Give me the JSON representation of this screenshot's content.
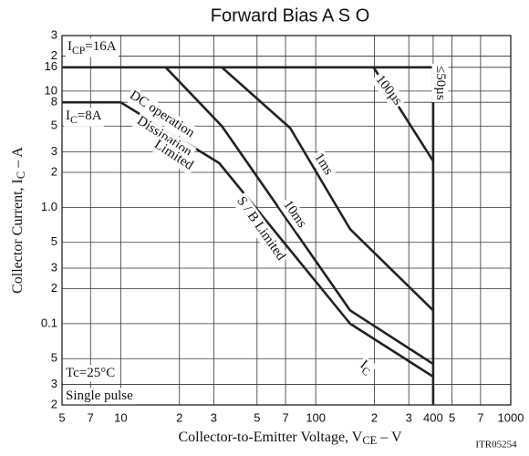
{
  "chart_data": {
    "type": "line",
    "title": "Forward Bias A S O",
    "x_label": {
      "text": "Collector-to-Emitter Voltage, V",
      "sub": "CE",
      "rest": "  –  V"
    },
    "y_label": {
      "text": "Collector Current, I",
      "sub": "C",
      "rest": "  –  A"
    },
    "code": "ITR05254",
    "log_x": true,
    "log_y": true,
    "grid": true,
    "xlim": [
      5,
      1000
    ],
    "ylim": [
      0.02,
      30
    ],
    "xticks": [
      5,
      7,
      10,
      {
        "value": 20,
        "label": "2"
      },
      {
        "value": 30,
        "label": "3"
      },
      {
        "value": 50,
        "label": "5"
      },
      {
        "value": 70,
        "label": "7"
      },
      100,
      {
        "value": 200,
        "label": "2"
      },
      {
        "value": 300,
        "label": "3"
      },
      400,
      {
        "value": 500,
        "label": "5"
      },
      {
        "value": 700,
        "label": "7"
      },
      1000
    ],
    "yticks": [
      {
        "value": 30,
        "label": "3"
      },
      {
        "value": 20,
        "label": "2"
      },
      16,
      10,
      8,
      {
        "value": 5,
        "label": "5"
      },
      {
        "value": 3,
        "label": "3"
      },
      {
        "value": 2,
        "label": "2"
      },
      {
        "value": 1,
        "label": "1.0"
      },
      {
        "value": 0.5,
        "label": "5"
      },
      {
        "value": 0.3,
        "label": "3"
      },
      {
        "value": 0.2,
        "label": "2"
      },
      0.1,
      {
        "value": 0.05,
        "label": "5"
      },
      {
        "value": 0.03,
        "label": "3"
      },
      {
        "value": 0.02,
        "label": "2"
      }
    ],
    "series": [
      {
        "color": "#222",
        "x": [
          5,
          400,
          400
        ],
        "values": [
          16,
          16,
          0.02
        ]
      },
      {
        "color": "#222",
        "x": [
          5,
          10,
          32,
          150,
          400
        ],
        "values": [
          8,
          8,
          2.4,
          0.1,
          0.035
        ]
      },
      {
        "color": "#222",
        "x": [
          17,
          33,
          150,
          400
        ],
        "values": [
          16,
          5,
          0.13,
          0.045
        ]
      },
      {
        "color": "#222",
        "x": [
          33,
          74,
          150,
          400
        ],
        "values": [
          16,
          4.8,
          0.65,
          0.13
        ]
      },
      {
        "color": "#222",
        "x": [
          198,
          400
        ],
        "values": [
          16,
          2.5
        ]
      }
    ],
    "annotations": [
      {
        "text": "I",
        "sub": "CP",
        "rest": "=16A"
      },
      {
        "text": "I",
        "sub": "C",
        "rest": "=8A"
      },
      {
        "text": "DC  operation"
      },
      {
        "text": "Dissipation"
      },
      {
        "text": "Limited"
      },
      {
        "text": "100µs"
      },
      {
        "text": "≤50µs"
      },
      {
        "text": "1ms"
      },
      {
        "text": "10ms"
      },
      {
        "text": "S / B Limited"
      },
      {
        "text": "I",
        "sub": "C"
      },
      {
        "text": "Tc=25°C"
      },
      {
        "text": "Single pulse"
      }
    ]
  }
}
